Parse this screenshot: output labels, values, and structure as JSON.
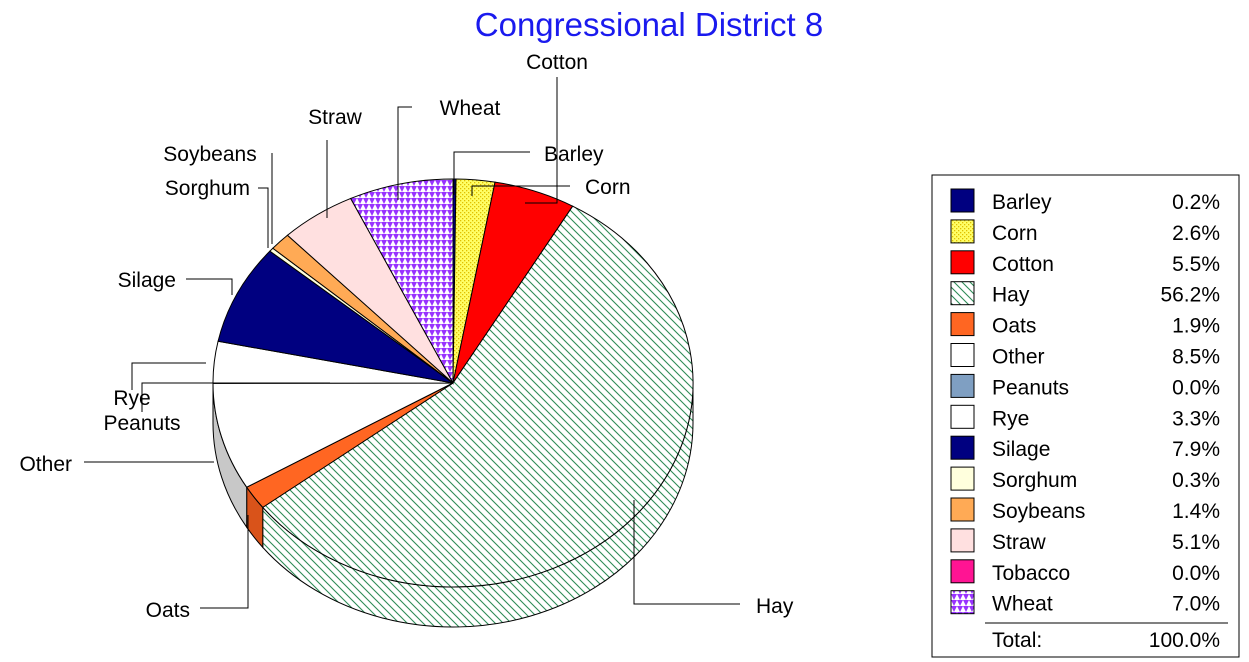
{
  "chart_data": {
    "type": "pie",
    "title": "Congressional District 8",
    "slices": [
      {
        "label": "Barley",
        "value": 0.2,
        "pct": "0.2%",
        "color": "#000080",
        "pattern": "solid"
      },
      {
        "label": "Corn",
        "value": 2.6,
        "pct": "2.6%",
        "color": "#ffff66",
        "pattern": "dots"
      },
      {
        "label": "Cotton",
        "value": 5.5,
        "pct": "5.5%",
        "color": "#ff0000",
        "pattern": "solid"
      },
      {
        "label": "Hay",
        "value": 56.2,
        "pct": "56.2%",
        "color": "#2e8b57",
        "pattern": "diagonal"
      },
      {
        "label": "Oats",
        "value": 1.9,
        "pct": "1.9%",
        "color": "#ff6622",
        "pattern": "solid"
      },
      {
        "label": "Other",
        "value": 8.5,
        "pct": "8.5%",
        "color": "#ffffff",
        "pattern": "solid"
      },
      {
        "label": "Peanuts",
        "value": 0.0,
        "pct": "0.0%",
        "color": "#7f9fc2",
        "pattern": "solid"
      },
      {
        "label": "Rye",
        "value": 3.3,
        "pct": "3.3%",
        "color": "#ffffff",
        "pattern": "solid"
      },
      {
        "label": "Silage",
        "value": 7.9,
        "pct": "7.9%",
        "color": "#000080",
        "pattern": "solid"
      },
      {
        "label": "Sorghum",
        "value": 0.3,
        "pct": "0.3%",
        "color": "#ffffdd",
        "pattern": "solid"
      },
      {
        "label": "Soybeans",
        "value": 1.4,
        "pct": "1.4%",
        "color": "#ffaa55",
        "pattern": "solid"
      },
      {
        "label": "Straw",
        "value": 5.1,
        "pct": "5.1%",
        "color": "#ffe0e0",
        "pattern": "solid"
      },
      {
        "label": "Tobacco",
        "value": 0.0,
        "pct": "0.0%",
        "color": "#ff1493",
        "pattern": "solid"
      },
      {
        "label": "Wheat",
        "value": 7.0,
        "pct": "7.0%",
        "color": "#9933ff",
        "pattern": "checker"
      }
    ],
    "total_label": "Total:",
    "total_value": "100.0%",
    "legend_placement": "right"
  }
}
